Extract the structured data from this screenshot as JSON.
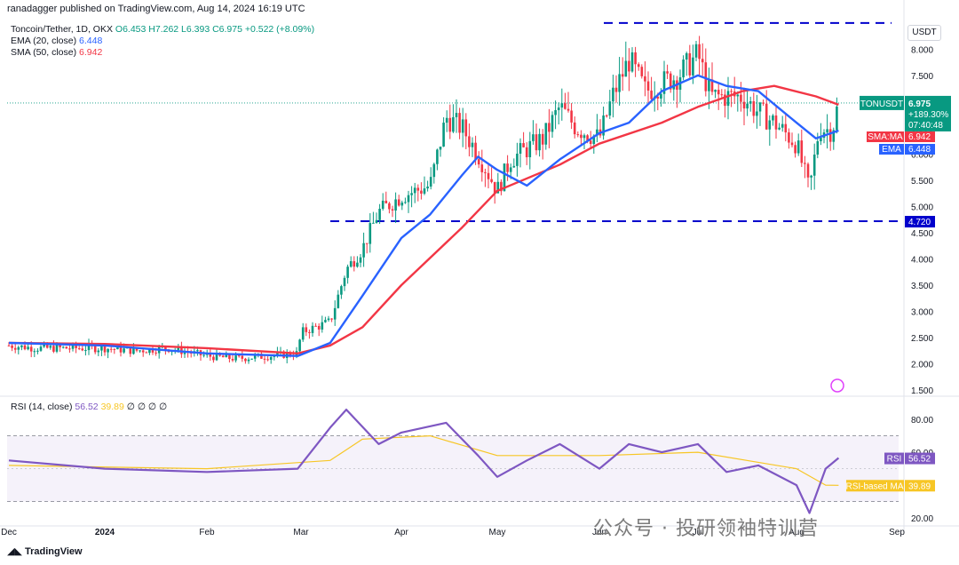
{
  "header": {
    "publisher": "ranadagger published on TradingView.com, Aug 14, 2024 16:19 UTC",
    "symbol": "Toncoin/Tether, 1D, OKX",
    "ohlc": "O6.453 H7.262 L6.393 C6.975 +0.522 (+8.09%)",
    "ema_legend": "EMA (20, close)",
    "ema_value": "6.448",
    "sma_legend": "SMA (50, close)",
    "sma_value": "6.942"
  },
  "currency": "USDT",
  "footer": "TradingView",
  "watermark": "公众号 · 投研领袖特训营",
  "price_tags": {
    "ticker": "TONUSDT",
    "price": "6.975",
    "change": "+189.30%",
    "countdown": "07:40:48",
    "sma_label": "SMA:MA",
    "sma_value": "6.942",
    "ema_label": "EMA",
    "ema_value": "6.448",
    "support_level": "4.720"
  },
  "rsi": {
    "legend": "RSI (14, close)",
    "value": "56.52",
    "ma_value": "39.89",
    "extras": "∅ ∅ ∅ ∅",
    "label": "RSI",
    "ma_label": "RSI-based MA",
    "ticks": [
      "80.00",
      "60.00",
      "20.00"
    ]
  },
  "colors": {
    "up": "#089981",
    "down": "#f23645",
    "ema": "#2962ff",
    "sma": "#f23645",
    "rsi": "#7e57c2",
    "rsi_ma": "#f7c625",
    "level_line": "#0000cc"
  },
  "chart_data": {
    "type": "candlestick",
    "title": "Toncoin/Tether, 1D, OKX",
    "y_axis_ticks": [
      "8.000",
      "7.500",
      "7.000",
      "6.500",
      "6.000",
      "5.500",
      "5.000",
      "4.500",
      "4.000",
      "3.500",
      "3.000",
      "2.500",
      "2.000",
      "1.500"
    ],
    "x_axis_ticks": [
      "Dec",
      "2024",
      "Feb",
      "Mar",
      "Apr",
      "May",
      "Jun",
      "Jul",
      "Aug",
      "Sep"
    ],
    "ylim": [
      1.4,
      8.6
    ],
    "horizontal_levels": [
      8.5,
      4.72
    ],
    "series": [
      {
        "name": "Price",
        "points": [
          [
            "Dec 1",
            2.35
          ],
          [
            "Dec 10",
            2.3
          ],
          [
            "Dec 20",
            2.3
          ],
          [
            "Jan 1",
            2.3
          ],
          [
            "Jan 10",
            2.25
          ],
          [
            "Jan 20",
            2.3
          ],
          [
            "Feb 1",
            2.15
          ],
          [
            "Feb 10",
            2.1
          ],
          [
            "Feb 20",
            2.15
          ],
          [
            "Feb 29",
            2.2
          ],
          [
            "Mar 1",
            2.6
          ],
          [
            "Mar 10",
            2.8
          ],
          [
            "Mar 15",
            3.8
          ],
          [
            "Mar 20",
            4.2
          ],
          [
            "Mar 25",
            4.9
          ],
          [
            "Apr 1",
            5.2
          ],
          [
            "Apr 10",
            5.4
          ],
          [
            "Apr 15",
            6.7
          ],
          [
            "Apr 20",
            6.5
          ],
          [
            "Apr 25",
            6.0
          ],
          [
            "May 1",
            5.3
          ],
          [
            "May 5",
            5.9
          ],
          [
            "May 15",
            6.3
          ],
          [
            "May 20",
            6.9
          ],
          [
            "May 25",
            6.5
          ],
          [
            "Jun 1",
            6.3
          ],
          [
            "Jun 5",
            7.1
          ],
          [
            "Jun 10",
            7.8
          ],
          [
            "Jun 15",
            7.2
          ],
          [
            "Jun 25",
            7.5
          ],
          [
            "Jul 1",
            7.9
          ],
          [
            "Jul 5",
            7.1
          ],
          [
            "Jul 15",
            7.1
          ],
          [
            "Jul 20",
            6.8
          ],
          [
            "Jul 25",
            6.6
          ],
          [
            "Aug 1",
            6.2
          ],
          [
            "Aug 5",
            5.3
          ],
          [
            "Aug 8",
            6.5
          ],
          [
            "Aug 12",
            6.45
          ],
          [
            "Aug 14",
            6.975
          ]
        ]
      },
      {
        "name": "EMA (20, close)",
        "points": [
          [
            "Dec 1",
            2.4
          ],
          [
            "Jan 1",
            2.35
          ],
          [
            "Feb 1",
            2.2
          ],
          [
            "Feb 29",
            2.15
          ],
          [
            "Mar 10",
            2.4
          ],
          [
            "Mar 20",
            3.3
          ],
          [
            "Apr 1",
            4.4
          ],
          [
            "Apr 10",
            4.85
          ],
          [
            "Apr 20",
            5.6
          ],
          [
            "Apr 25",
            5.95
          ],
          [
            "May 1",
            5.7
          ],
          [
            "May 10",
            5.4
          ],
          [
            "May 20",
            5.9
          ],
          [
            "Jun 1",
            6.4
          ],
          [
            "Jun 10",
            6.6
          ],
          [
            "Jun 20",
            7.2
          ],
          [
            "Jul 1",
            7.5
          ],
          [
            "Jul 10",
            7.3
          ],
          [
            "Jul 20",
            7.2
          ],
          [
            "Aug 1",
            6.6
          ],
          [
            "Aug 7",
            6.3
          ],
          [
            "Aug 14",
            6.448
          ]
        ]
      },
      {
        "name": "SMA (50, close)",
        "points": [
          [
            "Dec 1",
            2.4
          ],
          [
            "Jan 1",
            2.38
          ],
          [
            "Feb 1",
            2.3
          ],
          [
            "Feb 29",
            2.2
          ],
          [
            "Mar 10",
            2.35
          ],
          [
            "Mar 20",
            2.7
          ],
          [
            "Apr 1",
            3.5
          ],
          [
            "Apr 20",
            4.6
          ],
          [
            "May 1",
            5.3
          ],
          [
            "May 20",
            5.8
          ],
          [
            "Jun 1",
            6.2
          ],
          [
            "Jun 20",
            6.6
          ],
          [
            "Jul 1",
            6.9
          ],
          [
            "Jul 15",
            7.2
          ],
          [
            "Jul 25",
            7.3
          ],
          [
            "Aug 7",
            7.1
          ],
          [
            "Aug 14",
            6.942
          ]
        ]
      },
      {
        "name": "RSI (14, close)",
        "points": [
          [
            "Dec 1",
            55
          ],
          [
            "Jan 1",
            50
          ],
          [
            "Feb 1",
            48
          ],
          [
            "Feb 29",
            50
          ],
          [
            "Mar 10",
            75
          ],
          [
            "Mar 15",
            86
          ],
          [
            "Mar 25",
            65
          ],
          [
            "Apr 1",
            72
          ],
          [
            "Apr 15",
            78
          ],
          [
            "Apr 25",
            58
          ],
          [
            "May 1",
            45
          ],
          [
            "May 10",
            55
          ],
          [
            "May 20",
            65
          ],
          [
            "Jun 1",
            50
          ],
          [
            "Jun 10",
            65
          ],
          [
            "Jun 20",
            60
          ],
          [
            "Jul 1",
            65
          ],
          [
            "Jul 10",
            48
          ],
          [
            "Jul 20",
            52
          ],
          [
            "Aug 1",
            40
          ],
          [
            "Aug 5",
            23
          ],
          [
            "Aug 10",
            50
          ],
          [
            "Aug 14",
            56.52
          ]
        ]
      },
      {
        "name": "RSI-based MA",
        "points": [
          [
            "Dec 1",
            52
          ],
          [
            "Feb 1",
            50
          ],
          [
            "Mar 10",
            55
          ],
          [
            "Mar 20",
            68
          ],
          [
            "Apr 10",
            70
          ],
          [
            "May 1",
            58
          ],
          [
            "Jun 1",
            58
          ],
          [
            "Jul 1",
            60
          ],
          [
            "Aug 1",
            50
          ],
          [
            "Aug 10",
            40
          ],
          [
            "Aug 14",
            39.89
          ]
        ]
      }
    ]
  }
}
